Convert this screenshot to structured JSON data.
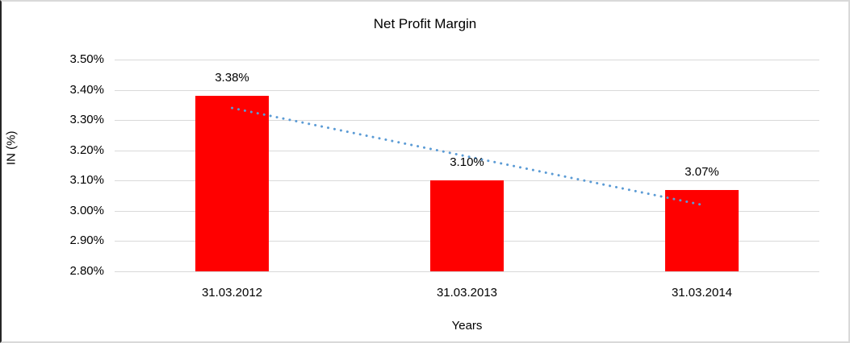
{
  "chart_data": {
    "type": "bar",
    "title": "Net Profit Margin",
    "xlabel": "Years",
    "ylabel": "IN (%)",
    "categories": [
      "31.03.2012",
      "31.03.2013",
      "31.03.2014"
    ],
    "values": [
      3.38,
      3.1,
      3.07
    ],
    "data_labels": [
      "3.38%",
      "3.10%",
      "3.07%"
    ],
    "ylim": [
      2.8,
      3.5
    ],
    "yticks": [
      2.8,
      2.9,
      3.0,
      3.1,
      3.2,
      3.3,
      3.4,
      3.5
    ],
    "ytick_labels": [
      "2.80%",
      "2.90%",
      "3.00%",
      "3.10%",
      "3.20%",
      "3.30%",
      "3.40%",
      "3.50%"
    ],
    "grid": true,
    "legend": false,
    "bar_color": "#ff0000",
    "gridline_color": "#d9d9d9",
    "trendline": {
      "style": "dotted",
      "color": "#5b9bd5",
      "start_value": 3.34,
      "end_value": 3.02
    }
  }
}
